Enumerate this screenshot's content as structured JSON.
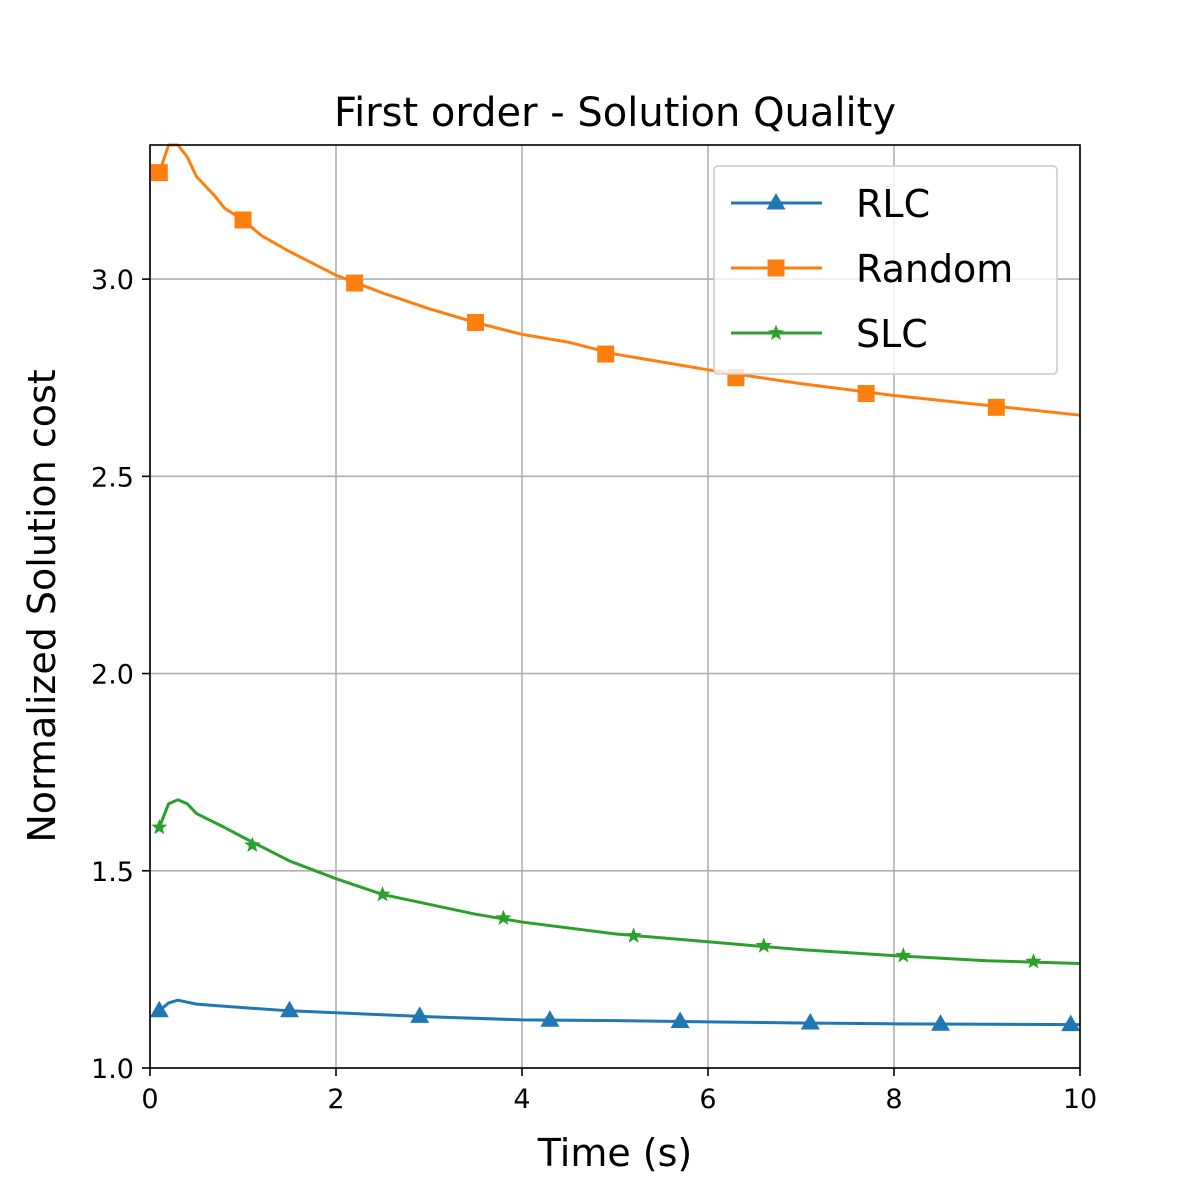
{
  "chart_data": {
    "type": "line",
    "title": "First order - Solution Quality",
    "xlabel": "Time (s)",
    "ylabel": "Normalized Solution cost",
    "xlim": [
      0,
      10
    ],
    "ylim": [
      1.0,
      3.34
    ],
    "xticks": [
      0,
      2,
      4,
      6,
      8,
      10
    ],
    "xtick_labels": [
      "0",
      "2",
      "4",
      "6",
      "8",
      "10"
    ],
    "yticks": [
      1.0,
      1.5,
      2.0,
      2.5,
      3.0
    ],
    "ytick_labels": [
      "1.0",
      "1.5",
      "2.0",
      "2.5",
      "3.0"
    ],
    "grid": true,
    "legend": {
      "placement": "top-right"
    },
    "series": [
      {
        "name": "RLC",
        "color": "#1f77b4",
        "marker": "triangle",
        "x": [
          0.1,
          0.2,
          0.3,
          0.5,
          1.0,
          1.5,
          2.0,
          2.5,
          3.0,
          4.0,
          5.0,
          6.0,
          7.0,
          8.0,
          9.0,
          10.0
        ],
        "y": [
          1.145,
          1.165,
          1.172,
          1.162,
          1.153,
          1.145,
          1.14,
          1.135,
          1.13,
          1.122,
          1.12,
          1.117,
          1.114,
          1.112,
          1.111,
          1.11
        ],
        "marker_x": [
          0.1,
          1.5,
          2.9,
          4.3,
          5.7,
          7.1,
          8.5,
          9.9
        ],
        "marker_y": [
          1.145,
          1.145,
          1.131,
          1.121,
          1.118,
          1.114,
          1.111,
          1.11
        ]
      },
      {
        "name": "Random",
        "color": "#ff7f0e",
        "marker": "square",
        "x": [
          0.1,
          0.2,
          0.3,
          0.4,
          0.5,
          0.7,
          0.8,
          1.0,
          1.2,
          1.5,
          2.0,
          2.5,
          3.0,
          3.5,
          4.0,
          4.5,
          5.0,
          6.0,
          7.0,
          8.0,
          9.0,
          10.0
        ],
        "y": [
          3.27,
          3.34,
          3.34,
          3.31,
          3.26,
          3.21,
          3.18,
          3.15,
          3.11,
          3.07,
          3.01,
          2.965,
          2.925,
          2.89,
          2.86,
          2.84,
          2.81,
          2.77,
          2.735,
          2.705,
          2.68,
          2.655
        ],
        "marker_x": [
          0.1,
          1.0,
          2.2,
          3.5,
          4.9,
          6.3,
          7.7,
          9.1
        ],
        "marker_y": [
          3.27,
          3.15,
          2.99,
          2.89,
          2.81,
          2.75,
          2.71,
          2.675
        ]
      },
      {
        "name": "SLC",
        "color": "#2ca02c",
        "marker": "star",
        "x": [
          0.1,
          0.2,
          0.3,
          0.4,
          0.5,
          0.8,
          1.0,
          1.5,
          2.0,
          2.5,
          3.0,
          3.5,
          4.0,
          5.0,
          6.0,
          7.0,
          8.0,
          9.0,
          10.0
        ],
        "y": [
          1.61,
          1.67,
          1.68,
          1.67,
          1.645,
          1.61,
          1.585,
          1.525,
          1.48,
          1.44,
          1.415,
          1.39,
          1.37,
          1.34,
          1.32,
          1.3,
          1.285,
          1.272,
          1.265
        ],
        "marker_x": [
          0.1,
          1.1,
          2.5,
          3.8,
          5.2,
          6.6,
          8.1,
          9.5
        ],
        "marker_y": [
          1.61,
          1.565,
          1.44,
          1.38,
          1.335,
          1.31,
          1.285,
          1.27
        ]
      }
    ]
  }
}
